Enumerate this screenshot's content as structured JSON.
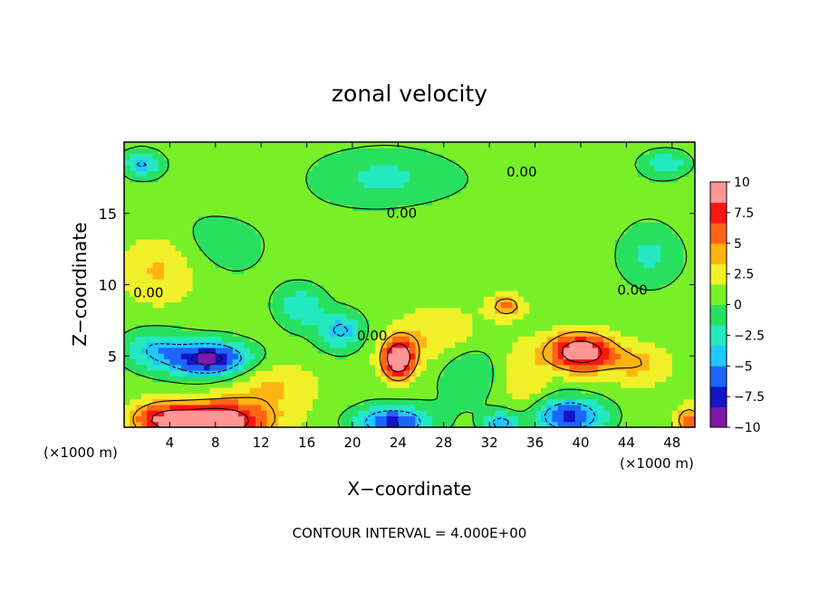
{
  "chart_data": {
    "type": "heatmap",
    "title": "zonal velocity",
    "xlabel": "X−coordinate",
    "ylabel": "Z−coordinate",
    "x_unit_label_left": "(×1000 m)",
    "x_unit_label_right": "(×1000 m)",
    "footer": "CONTOUR INTERVAL = 4.000E+00",
    "xlim": [
      0,
      50
    ],
    "ylim": [
      0,
      20
    ],
    "x_ticks": [
      4,
      8,
      12,
      16,
      20,
      24,
      28,
      32,
      36,
      40,
      44,
      48
    ],
    "y_ticks": [
      5,
      10,
      15
    ],
    "contour_labels": [
      {
        "text": "0.00",
        "x": 0.8,
        "y": 9.1
      },
      {
        "text": "0.00",
        "x": 20.4,
        "y": 6.1
      },
      {
        "text": "0.00",
        "x": 23.0,
        "y": 14.7
      },
      {
        "text": "0.00",
        "x": 33.5,
        "y": 17.6
      },
      {
        "text": "0.00",
        "x": 43.2,
        "y": 9.3
      }
    ],
    "colorbar": {
      "range": [
        -10,
        10
      ],
      "tick_labels": [
        "10",
        "7.5",
        "5",
        "2.5",
        "0",
        "−2.5",
        "−5",
        "−7.5",
        "−10"
      ],
      "tick_values": [
        10,
        7.5,
        5,
        2.5,
        0,
        -2.5,
        -5,
        -7.5,
        -10
      ],
      "colors": [
        "#7a1aa6",
        "#1414c8",
        "#1e64ff",
        "#1ec8ff",
        "#24e8c0",
        "#28e060",
        "#78f028",
        "#f0f028",
        "#ffb414",
        "#ff6414",
        "#ff1414",
        "#ff9696"
      ]
    },
    "features": [
      {
        "kind": "jet",
        "x": 8.0,
        "y": 0.4,
        "value": 11,
        "rx": 4.6,
        "ry": 1.4
      },
      {
        "kind": "jet",
        "x": 3.0,
        "y": 0.6,
        "value": 5,
        "rx": 2.6,
        "ry": 1.2
      },
      {
        "kind": "jet",
        "x": 24.0,
        "y": 4.8,
        "value": 11,
        "rx": 1.4,
        "ry": 1.4
      },
      {
        "kind": "jet",
        "x": 40.0,
        "y": 5.3,
        "value": 10,
        "rx": 2.8,
        "ry": 1.3
      },
      {
        "kind": "jet",
        "x": 33.5,
        "y": 8.5,
        "value": 5,
        "rx": 1.5,
        "ry": 0.8
      },
      {
        "kind": "jet",
        "x": 49.5,
        "y": 0.5,
        "value": 6,
        "rx": 1.2,
        "ry": 1.0
      },
      {
        "kind": "jet",
        "x": 45.0,
        "y": 4.5,
        "value": 3.5,
        "rx": 3.0,
        "ry": 1.5
      },
      {
        "kind": "jet",
        "x": 3.0,
        "y": 11.0,
        "value": 2.8,
        "rx": 3.5,
        "ry": 2.5
      },
      {
        "kind": "jet",
        "x": 28.0,
        "y": 6.5,
        "value": 3.0,
        "rx": 4.0,
        "ry": 2.0
      },
      {
        "kind": "jet",
        "x": 13.0,
        "y": 3.0,
        "value": 3.0,
        "rx": 4.0,
        "ry": 1.8
      },
      {
        "kind": "jet",
        "x": 35.0,
        "y": 3.5,
        "value": 2.5,
        "rx": 2.0,
        "ry": 2.5
      },
      {
        "kind": "jet",
        "x": 7.5,
        "y": 4.8,
        "value": -10,
        "rx": 3.6,
        "ry": 1.2
      },
      {
        "kind": "jet",
        "x": 2.5,
        "y": 5.5,
        "value": -4,
        "rx": 2.5,
        "ry": 1.2
      },
      {
        "kind": "jet",
        "x": 23.5,
        "y": 0.4,
        "value": -8,
        "rx": 3.2,
        "ry": 1.0
      },
      {
        "kind": "jet",
        "x": 39.0,
        "y": 0.8,
        "value": -8,
        "rx": 3.0,
        "ry": 1.2
      },
      {
        "kind": "jet",
        "x": 33.0,
        "y": 0.3,
        "value": -6,
        "rx": 1.5,
        "ry": 0.8
      },
      {
        "kind": "jet",
        "x": 19.0,
        "y": 6.8,
        "value": -5,
        "rx": 1.8,
        "ry": 1.2
      },
      {
        "kind": "jet",
        "x": 15.5,
        "y": 8.5,
        "value": -4,
        "rx": 2.0,
        "ry": 1.4
      },
      {
        "kind": "jet",
        "x": 23.0,
        "y": 17.5,
        "value": -3,
        "rx": 5.0,
        "ry": 1.8
      },
      {
        "kind": "jet",
        "x": 1.5,
        "y": 18.5,
        "value": -5,
        "rx": 1.5,
        "ry": 0.8
      },
      {
        "kind": "jet",
        "x": 47.5,
        "y": 18.5,
        "value": -4,
        "rx": 1.8,
        "ry": 0.8
      },
      {
        "kind": "jet",
        "x": 30.0,
        "y": 4.0,
        "value": -2.5,
        "rx": 2.5,
        "ry": 2.5
      },
      {
        "kind": "jet",
        "x": 46.0,
        "y": 12.0,
        "value": -3,
        "rx": 2.5,
        "ry": 2.0
      },
      {
        "kind": "jet",
        "x": 8.0,
        "y": 13.0,
        "value": -1.5,
        "rx": 4.0,
        "ry": 2.0
      }
    ]
  }
}
